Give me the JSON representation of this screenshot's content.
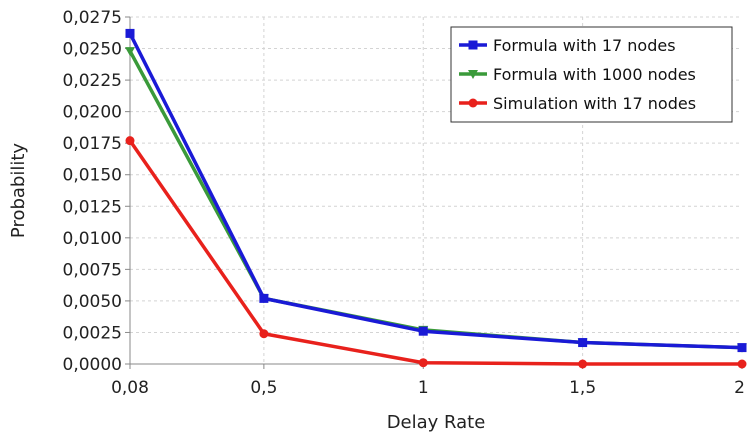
{
  "chart_data": {
    "type": "line",
    "title": "",
    "xlabel": "Delay Rate",
    "ylabel": "Probability",
    "x_ticks": [
      {
        "value": 0.08,
        "label": "0,08"
      },
      {
        "value": 0.5,
        "label": "0,5"
      },
      {
        "value": 1,
        "label": "1"
      },
      {
        "value": 1.5,
        "label": "1,5"
      },
      {
        "value": 2,
        "label": "2"
      }
    ],
    "y_ticks": [
      {
        "value": 0,
        "label": "0,0000"
      },
      {
        "value": 0.0025,
        "label": "0,0025"
      },
      {
        "value": 0.005,
        "label": "0,0050"
      },
      {
        "value": 0.0075,
        "label": "0,0075"
      },
      {
        "value": 0.01,
        "label": "0,0100"
      },
      {
        "value": 0.0125,
        "label": "0,0125"
      },
      {
        "value": 0.015,
        "label": "0,0150"
      },
      {
        "value": 0.0175,
        "label": "0,0175"
      },
      {
        "value": 0.02,
        "label": "0,0200"
      },
      {
        "value": 0.0225,
        "label": "0,0225"
      },
      {
        "value": 0.025,
        "label": "0,0250"
      },
      {
        "value": 0.0275,
        "label": "0,0275"
      }
    ],
    "xlim": [
      0.08,
      2
    ],
    "ylim": [
      0,
      0.0275
    ],
    "grid": true,
    "legend_position": "top-right",
    "x": [
      0.08,
      0.5,
      1,
      1.5,
      2
    ],
    "series": [
      {
        "name": "Formula with 1000 nodes",
        "color": "#3a9a3a",
        "marker": "triangle-down",
        "values": [
          0.0248,
          0.0052,
          0.0027,
          0.0017,
          0.0013
        ]
      },
      {
        "name": "Formula with 17 nodes",
        "color": "#1a1ad6",
        "marker": "square",
        "values": [
          0.0262,
          0.0052,
          0.0026,
          0.0017,
          0.0013
        ]
      },
      {
        "name": "Simulation with 17 nodes",
        "color": "#e8211c",
        "marker": "circle",
        "values": [
          0.0177,
          0.0024,
          0.0001,
          0.0,
          0.0
        ]
      }
    ],
    "legend_order": [
      "Formula with 17 nodes",
      "Formula with 1000 nodes",
      "Simulation with 17 nodes"
    ]
  }
}
